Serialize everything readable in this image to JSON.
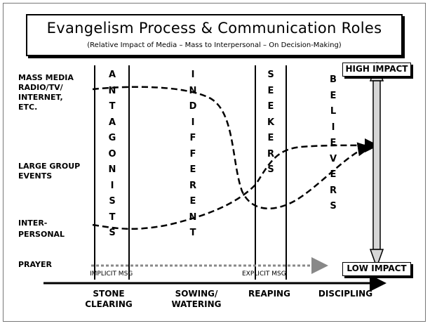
{
  "title": "Evangelism Process & Communication Roles",
  "subtitle": "(Relative Impact of Media – Mass to Interpersonal – On Decision-Making)",
  "row_labels": {
    "mass_media": "MASS MEDIA\nRADIO/TV/\nINTERNET,\nETC.",
    "large_group": "LARGE GROUP\nEVENTS",
    "interpersonal": "INTER-\nPERSONAL",
    "prayer": "PRAYER"
  },
  "audience_columns": [
    {
      "label": "A\nN\nT\nA\nG\nO\nN\nI\nS\nT\nS"
    },
    {
      "label": "I\nN\nD\nI\nF\nF\nE\nR\nE\nN\nT"
    },
    {
      "label": "S\nE\nE\nK\nE\nR\nS"
    },
    {
      "label": "B\nE\nL\nI\nE\nV\nE\nR\nS"
    }
  ],
  "impact": {
    "high": "HIGH IMPACT",
    "low": "LOW IMPACT"
  },
  "messages": {
    "implicit": "IMPLICIT MSG",
    "explicit": "EXPLICIT MSG"
  },
  "phases": [
    {
      "label": "STONE\nCLEARING"
    },
    {
      "label": "SOWING/\nWATERING"
    },
    {
      "label": "REAPING"
    },
    {
      "label": "DISCIPLING"
    }
  ]
}
